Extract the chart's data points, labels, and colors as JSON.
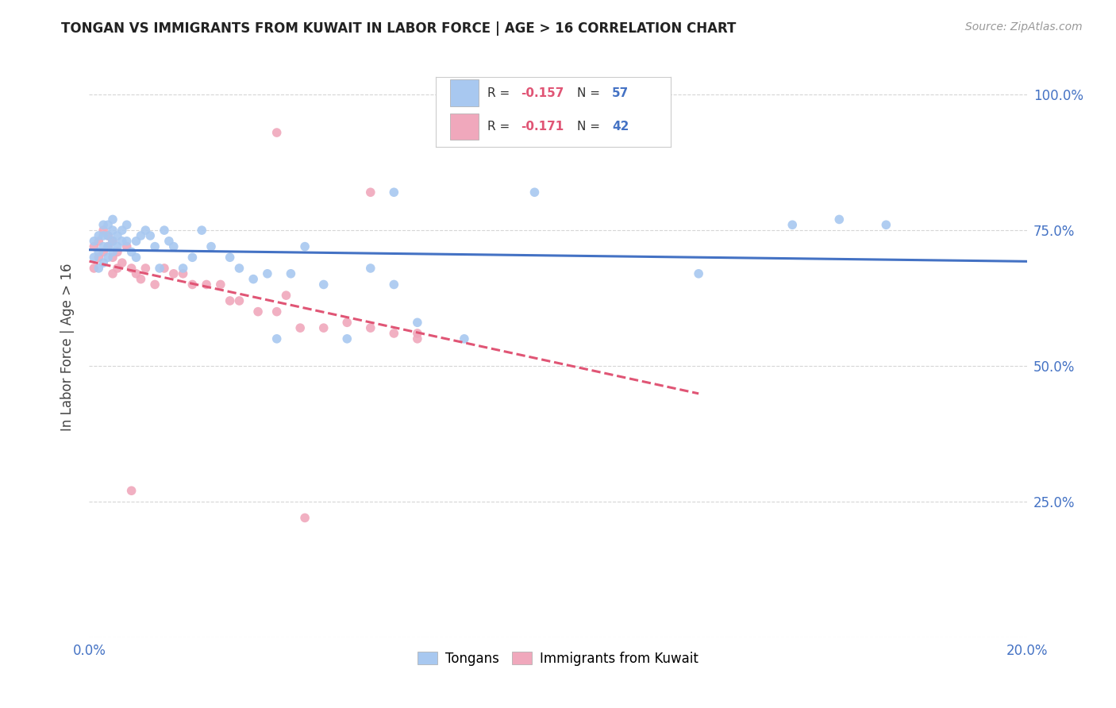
{
  "title": "TONGAN VS IMMIGRANTS FROM KUWAIT IN LABOR FORCE | AGE > 16 CORRELATION CHART",
  "source": "Source: ZipAtlas.com",
  "ylabel": "In Labor Force | Age > 16",
  "xlim": [
    0.0,
    0.2
  ],
  "ylim": [
    0.0,
    1.07
  ],
  "ytick_vals": [
    0.0,
    0.25,
    0.5,
    0.75,
    1.0
  ],
  "ytick_labels": [
    "",
    "25.0%",
    "50.0%",
    "75.0%",
    "100.0%"
  ],
  "xtick_vals": [
    0.0,
    0.02,
    0.04,
    0.06,
    0.08,
    0.1,
    0.12,
    0.14,
    0.16,
    0.18,
    0.2
  ],
  "xtick_labels": [
    "0.0%",
    "",
    "",
    "",
    "",
    "",
    "",
    "",
    "",
    "",
    "20.0%"
  ],
  "tongan_color": "#a8c8f0",
  "kuwait_color": "#f0a8bc",
  "trendline_tongan_color": "#4472c4",
  "trendline_kuwait_color": "#e05575",
  "background_color": "#ffffff",
  "grid_color": "#cccccc",
  "tick_color": "#4472c4",
  "title_color": "#222222",
  "source_color": "#999999",
  "ylabel_color": "#444444",
  "legend_R_tongan": "-0.157",
  "legend_N_tongan": "57",
  "legend_R_kuwait": "-0.171",
  "legend_N_kuwait": "42",
  "tongan_x": [
    0.001,
    0.001,
    0.002,
    0.002,
    0.002,
    0.003,
    0.003,
    0.003,
    0.003,
    0.004,
    0.004,
    0.004,
    0.004,
    0.005,
    0.005,
    0.005,
    0.005,
    0.006,
    0.006,
    0.007,
    0.007,
    0.008,
    0.008,
    0.009,
    0.01,
    0.01,
    0.011,
    0.012,
    0.013,
    0.014,
    0.015,
    0.016,
    0.017,
    0.018,
    0.02,
    0.022,
    0.024,
    0.026,
    0.03,
    0.032,
    0.035,
    0.038,
    0.04,
    0.043,
    0.046,
    0.05,
    0.055,
    0.06,
    0.065,
    0.065,
    0.07,
    0.08,
    0.095,
    0.13,
    0.15,
    0.16,
    0.17
  ],
  "tongan_y": [
    0.7,
    0.73,
    0.68,
    0.71,
    0.74,
    0.69,
    0.72,
    0.74,
    0.76,
    0.7,
    0.72,
    0.74,
    0.76,
    0.71,
    0.73,
    0.75,
    0.77,
    0.72,
    0.74,
    0.73,
    0.75,
    0.73,
    0.76,
    0.71,
    0.7,
    0.73,
    0.74,
    0.75,
    0.74,
    0.72,
    0.68,
    0.75,
    0.73,
    0.72,
    0.68,
    0.7,
    0.75,
    0.72,
    0.7,
    0.68,
    0.66,
    0.67,
    0.55,
    0.67,
    0.72,
    0.65,
    0.55,
    0.68,
    0.65,
    0.82,
    0.58,
    0.55,
    0.82,
    0.67,
    0.76,
    0.77,
    0.76
  ],
  "kuwait_x": [
    0.001,
    0.001,
    0.002,
    0.002,
    0.003,
    0.003,
    0.004,
    0.004,
    0.005,
    0.005,
    0.005,
    0.006,
    0.006,
    0.007,
    0.008,
    0.009,
    0.01,
    0.011,
    0.012,
    0.014,
    0.016,
    0.018,
    0.02,
    0.022,
    0.025,
    0.028,
    0.03,
    0.032,
    0.036,
    0.04,
    0.042,
    0.045,
    0.05,
    0.055,
    0.06,
    0.065,
    0.07,
    0.04,
    0.06,
    0.07,
    0.009,
    0.046
  ],
  "kuwait_y": [
    0.68,
    0.72,
    0.7,
    0.73,
    0.71,
    0.75,
    0.72,
    0.74,
    0.7,
    0.73,
    0.67,
    0.71,
    0.68,
    0.69,
    0.72,
    0.68,
    0.67,
    0.66,
    0.68,
    0.65,
    0.68,
    0.67,
    0.67,
    0.65,
    0.65,
    0.65,
    0.62,
    0.62,
    0.6,
    0.6,
    0.63,
    0.57,
    0.57,
    0.58,
    0.57,
    0.56,
    0.56,
    0.93,
    0.82,
    0.55,
    0.27,
    0.22
  ]
}
